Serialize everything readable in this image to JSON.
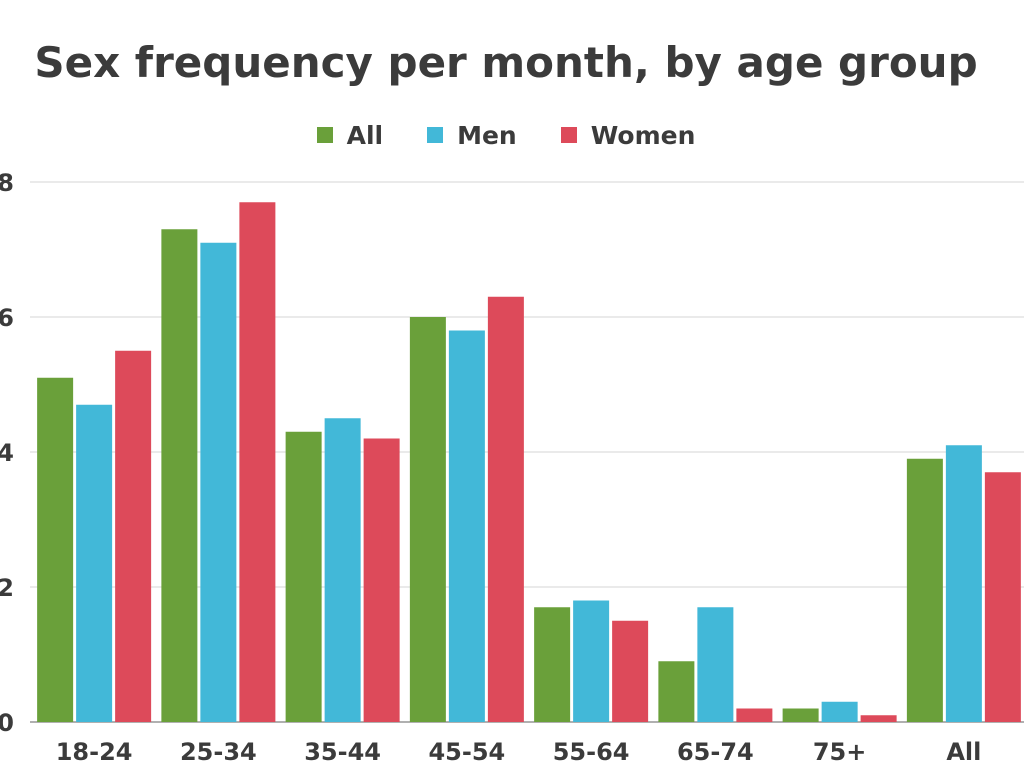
{
  "chart_data": {
    "type": "bar",
    "title": "Sex frequency per month, by age group",
    "categories": [
      "18-24",
      "25-34",
      "35-44",
      "45-54",
      "55-64",
      "65-74",
      "75+",
      "All"
    ],
    "series": [
      {
        "name": "All",
        "color": "#6aa03a",
        "values": [
          5.1,
          7.3,
          4.3,
          6.0,
          1.7,
          0.9,
          0.2,
          3.9
        ]
      },
      {
        "name": "Men",
        "color": "#42b8d8",
        "values": [
          4.7,
          7.1,
          4.5,
          5.8,
          1.8,
          1.7,
          0.3,
          4.1
        ]
      },
      {
        "name": "Women",
        "color": "#dd4a5a",
        "values": [
          5.5,
          7.7,
          4.2,
          6.3,
          1.5,
          0.2,
          0.1,
          3.7
        ]
      }
    ],
    "yticks": [
      "0",
      "2",
      "4",
      "6",
      "8"
    ],
    "ylim": [
      0,
      8
    ],
    "xlabel": "",
    "ylabel": "",
    "grid": true,
    "legend_position": "top-center"
  }
}
